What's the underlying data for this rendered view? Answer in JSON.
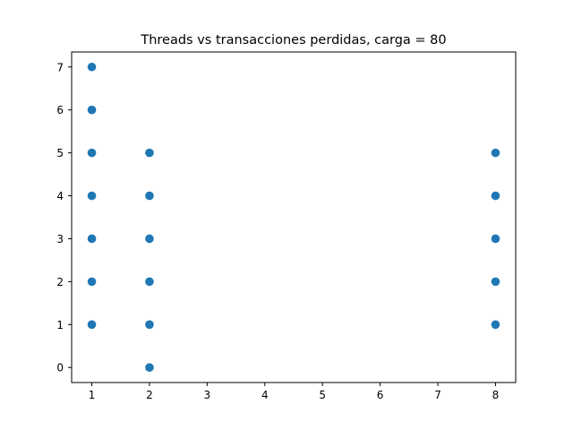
{
  "chart_data": {
    "type": "scatter",
    "title": "Threads vs transacciones perdidas, carga = 80",
    "xlabel": "",
    "ylabel": "",
    "xlim": [
      0.65,
      8.35
    ],
    "ylim": [
      -0.35,
      7.35
    ],
    "xticks": [
      1,
      2,
      3,
      4,
      5,
      6,
      7,
      8
    ],
    "yticks": [
      0,
      1,
      2,
      3,
      4,
      5,
      6,
      7
    ],
    "grid": false,
    "marker_color": "#1f77b4",
    "points": [
      {
        "x": 1,
        "y": 7
      },
      {
        "x": 1,
        "y": 6
      },
      {
        "x": 1,
        "y": 5
      },
      {
        "x": 1,
        "y": 4
      },
      {
        "x": 1,
        "y": 3
      },
      {
        "x": 1,
        "y": 2
      },
      {
        "x": 1,
        "y": 1
      },
      {
        "x": 2,
        "y": 5
      },
      {
        "x": 2,
        "y": 4
      },
      {
        "x": 2,
        "y": 3
      },
      {
        "x": 2,
        "y": 2
      },
      {
        "x": 2,
        "y": 1
      },
      {
        "x": 2,
        "y": 0
      },
      {
        "x": 8,
        "y": 5
      },
      {
        "x": 8,
        "y": 4
      },
      {
        "x": 8,
        "y": 3
      },
      {
        "x": 8,
        "y": 2
      },
      {
        "x": 8,
        "y": 1
      }
    ]
  }
}
